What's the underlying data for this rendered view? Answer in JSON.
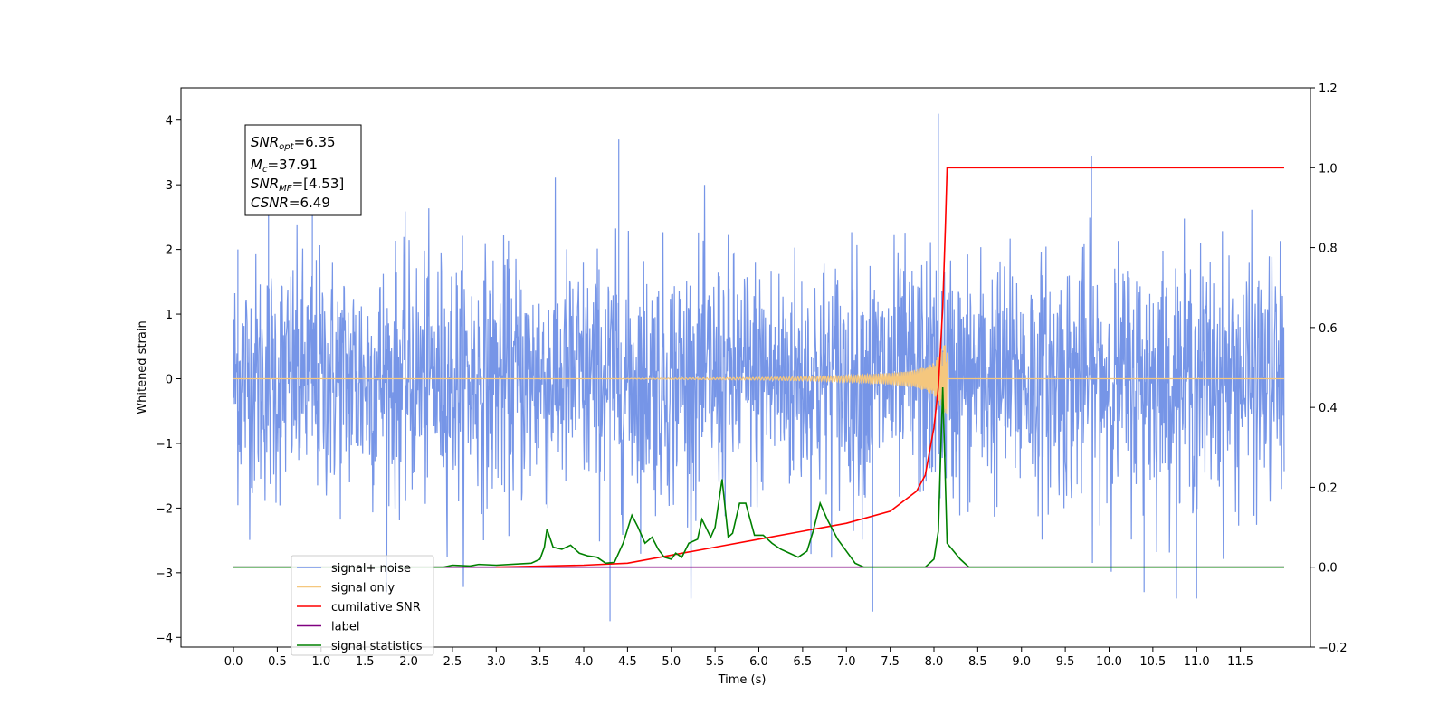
{
  "chart_data": {
    "type": "line",
    "xlabel": "Time (s)",
    "ylabel": "Whitened strain",
    "xlim": [
      -0.6,
      12.3
    ],
    "ylim": [
      -4.15,
      4.5
    ],
    "y2lim": [
      -0.2,
      1.2
    ],
    "x_ticks": [
      "0.0",
      "0.5",
      "1.0",
      "1.5",
      "2.0",
      "2.5",
      "3.0",
      "3.5",
      "4.0",
      "4.5",
      "5.0",
      "5.5",
      "6.0",
      "6.5",
      "7.0",
      "7.5",
      "8.0",
      "8.5",
      "9.0",
      "9.5",
      "10.0",
      "10.5",
      "11.0",
      "11.5"
    ],
    "y_ticks": [
      "4",
      "3",
      "2",
      "1",
      "0",
      "−1",
      "−2",
      "−3",
      "−4"
    ],
    "y2_ticks": [
      "1.2",
      "1.0",
      "0.8",
      "0.6",
      "0.4",
      "0.2",
      "0.0",
      "−0.2"
    ],
    "info_box": {
      "snr_opt": "=6.35",
      "mc": "=37.91",
      "snr_mf": "=[4.53]",
      "csnr": "=6.49"
    },
    "legend": [
      {
        "label": "signal+ noise",
        "color": "#6f8fe6"
      },
      {
        "label": "signal only",
        "color": "#f5c77e"
      },
      {
        "label": "cumilative SNR",
        "color": "#ff0000"
      },
      {
        "label": "label",
        "color": "#800080"
      },
      {
        "label": "signal statistics",
        "color": "#008000"
      }
    ],
    "legend_placement": "bottom-left",
    "grid": false,
    "series": [
      {
        "name": "signal+ noise",
        "axis": "left",
        "color": "#6f8fe6",
        "x_range": [
          0.0,
          12.0
        ],
        "noise_sigma": 1.0,
        "notable_peaks": [
          [
            0.05,
            2.0
          ],
          [
            0.4,
            3.2
          ],
          [
            0.9,
            3.3
          ],
          [
            4.4,
            3.7
          ],
          [
            4.3,
            -3.75
          ],
          [
            8.05,
            4.1
          ],
          [
            9.8,
            3.45
          ],
          [
            7.3,
            -3.6
          ],
          [
            10.4,
            -3.3
          ],
          [
            11.0,
            -3.4
          ]
        ]
      },
      {
        "name": "signal only",
        "axis": "left",
        "color": "#f5c77e",
        "x": [
          0.0,
          4.0,
          5.0,
          6.0,
          6.5,
          7.0,
          7.5,
          7.8,
          8.0,
          8.1,
          8.15,
          8.16,
          12.0
        ],
        "amplitude": [
          0.0,
          0.0,
          0.01,
          0.02,
          0.03,
          0.05,
          0.09,
          0.14,
          0.25,
          0.5,
          0.55,
          0.0,
          0.0
        ]
      },
      {
        "name": "cumilative SNR",
        "axis": "right",
        "color": "#ff0000",
        "x": [
          3.0,
          4.0,
          4.5,
          5.0,
          5.5,
          6.0,
          6.5,
          7.0,
          7.5,
          7.8,
          7.9,
          8.0,
          8.05,
          8.1,
          8.13,
          8.15,
          12.0
        ],
        "y": [
          0.0,
          0.005,
          0.01,
          0.03,
          0.05,
          0.07,
          0.09,
          0.11,
          0.14,
          0.19,
          0.23,
          0.35,
          0.45,
          0.65,
          0.85,
          1.0,
          1.0
        ]
      },
      {
        "name": "label",
        "axis": "right",
        "color": "#800080",
        "x": [
          0.0,
          12.0
        ],
        "y": [
          0.0,
          0.0
        ]
      },
      {
        "name": "signal statistics",
        "axis": "right",
        "color": "#008000",
        "x": [
          0.0,
          2.4,
          2.5,
          2.7,
          2.8,
          3.0,
          3.4,
          3.5,
          3.55,
          3.58,
          3.65,
          3.75,
          3.85,
          3.95,
          4.05,
          4.15,
          4.25,
          4.35,
          4.45,
          4.55,
          4.62,
          4.7,
          4.78,
          4.85,
          4.92,
          5.0,
          5.05,
          5.12,
          5.2,
          5.3,
          5.35,
          5.45,
          5.5,
          5.58,
          5.65,
          5.7,
          5.78,
          5.85,
          5.95,
          6.05,
          6.15,
          6.25,
          6.35,
          6.45,
          6.55,
          6.62,
          6.7,
          6.78,
          6.9,
          7.0,
          7.1,
          7.2,
          7.3,
          7.5,
          7.9,
          8.0,
          8.05,
          8.1,
          8.15,
          8.3,
          8.4,
          12.0
        ],
        "y": [
          0.0,
          0.0,
          0.005,
          0.003,
          0.007,
          0.005,
          0.01,
          0.02,
          0.05,
          0.095,
          0.05,
          0.045,
          0.055,
          0.035,
          0.028,
          0.025,
          0.01,
          0.012,
          0.06,
          0.13,
          0.1,
          0.06,
          0.075,
          0.045,
          0.025,
          0.02,
          0.035,
          0.025,
          0.06,
          0.07,
          0.12,
          0.075,
          0.1,
          0.22,
          0.075,
          0.085,
          0.16,
          0.16,
          0.08,
          0.08,
          0.06,
          0.045,
          0.035,
          0.025,
          0.04,
          0.09,
          0.16,
          0.12,
          0.07,
          0.04,
          0.01,
          0.0,
          0.0,
          0.0,
          0.0,
          0.02,
          0.09,
          0.45,
          0.06,
          0.02,
          0.0,
          0.0
        ]
      }
    ]
  }
}
